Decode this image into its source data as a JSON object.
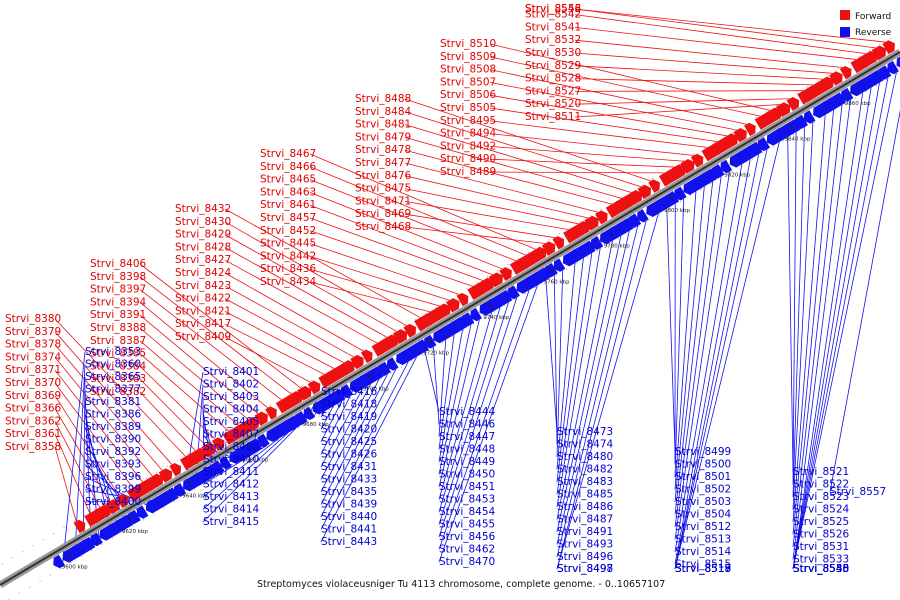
{
  "caption": "Streptomyces violaceusniger Tu 4113 chromosome, complete genome. - 0..10657107",
  "legend": {
    "forward": {
      "label": "Forward",
      "color": "#ee1111"
    },
    "reverse": {
      "label": "Reverse",
      "color": "#1111ee"
    }
  },
  "ticks": [
    "9600 kbp",
    "9620 kbp",
    "9640 kbp",
    "9660 kbp",
    "9680 kbp",
    "9700 kbp",
    "9720 kbp",
    "9740 kbp",
    "9760 kbp",
    "9780 kbp",
    "9800 kbp",
    "9820 kbp",
    "9840 kbp",
    "9860 kbp",
    "9880 kbp"
  ],
  "forward_genes": [
    "Strvi_8358",
    "Strvi_8361",
    "Strvi_8362",
    "Strvi_8366",
    "Strvi_8369",
    "Strvi_8370",
    "Strvi_8371",
    "Strvi_8374",
    "Strvi_8378",
    "Strvi_8379",
    "Strvi_8380",
    "Strvi_8382",
    "Strvi_8383",
    "Strvi_8384",
    "Strvi_8385",
    "Strvi_8387",
    "Strvi_8388",
    "Strvi_8391",
    "Strvi_8394",
    "Strvi_8397",
    "Strvi_8398",
    "Strvi_8406",
    "Strvi_8409",
    "Strvi_8417",
    "Strvi_8421",
    "Strvi_8422",
    "Strvi_8423",
    "Strvi_8424",
    "Strvi_8427",
    "Strvi_8428",
    "Strvi_8429",
    "Strvi_8430",
    "Strvi_8432",
    "Strvi_8434",
    "Strvi_8436",
    "Strvi_8442",
    "Strvi_8445",
    "Strvi_8452",
    "Strvi_8457",
    "Strvi_8461",
    "Strvi_8463",
    "Strvi_8465",
    "Strvi_8466",
    "Strvi_8467",
    "Strvi_8468",
    "Strvi_8469",
    "Strvi_8471",
    "Strvi_8475",
    "Strvi_8476",
    "Strvi_8477",
    "Strvi_8478",
    "Strvi_8479",
    "Strvi_8481",
    "Strvi_8484",
    "Strvi_8488",
    "Strvi_8489",
    "Strvi_8490",
    "Strvi_8492",
    "Strvi_8494",
    "Strvi_8495",
    "Strvi_8505",
    "Strvi_8506",
    "Strvi_8507",
    "Strvi_8508",
    "Strvi_8509",
    "Strvi_8510",
    "Strvi_8511",
    "Strvi_8520",
    "Strvi_8527",
    "Strvi_8528",
    "Strvi_8529",
    "Strvi_8530",
    "Strvi_8532",
    "Strvi_8541",
    "Strvi_8542",
    "Strvi_8543",
    "Strvi_8556"
  ],
  "reverse_genes": [
    "Strvi_8353",
    "Strvi_8360",
    "Strvi_8365",
    "Strvi_8377",
    "Strvi_8381",
    "Strvi_8386",
    "Strvi_8389",
    "Strvi_8390",
    "Strvi_8392",
    "Strvi_8393",
    "Strvi_8396",
    "Strvi_8399",
    "Strvi_8400",
    "Strvi_8401",
    "Strvi_8402",
    "Strvi_8403",
    "Strvi_8404",
    "Strvi_8405",
    "Strvi_8407",
    "Strvi_8408",
    "Strvi_8410",
    "Strvi_8411",
    "Strvi_8412",
    "Strvi_8413",
    "Strvi_8414",
    "Strvi_8415",
    "Strvi_8416",
    "Strvi_8418",
    "Strvi_8419",
    "Strvi_8420",
    "Strvi_8425",
    "Strvi_8426",
    "Strvi_8431",
    "Strvi_8433",
    "Strvi_8435",
    "Strvi_8439",
    "Strvi_8440",
    "Strvi_8441",
    "Strvi_8443",
    "Strvi_8444",
    "Strvi_8446",
    "Strvi_8447",
    "Strvi_8448",
    "Strvi_8449",
    "Strvi_8450",
    "Strvi_8451",
    "Strvi_8453",
    "Strvi_8454",
    "Strvi_8455",
    "Strvi_8456",
    "Strvi_8462",
    "Strvi_8470",
    "Strvi_8473",
    "Strvi_8474",
    "Strvi_8480",
    "Strvi_8482",
    "Strvi_8483",
    "Strvi_8485",
    "Strvi_8486",
    "Strvi_8487",
    "Strvi_8491",
    "Strvi_8493",
    "Strvi_8496",
    "Strvi_8497",
    "Strvi_8498",
    "Strvi_8499",
    "Strvi_8500",
    "Strvi_8501",
    "Strvi_8502",
    "Strvi_8503",
    "Strvi_8504",
    "Strvi_8512",
    "Strvi_8513",
    "Strvi_8514",
    "Strvi_8515",
    "Strvi_8517",
    "Strvi_8518",
    "Strvi_8519",
    "Strvi_8521",
    "Strvi_8522",
    "Strvi_8523",
    "Strvi_8524",
    "Strvi_8525",
    "Strvi_8526",
    "Strvi_8531",
    "Strvi_8533",
    "Strvi_8535",
    "Strvi_8536",
    "Strvi_8540",
    "Strvi_8548",
    "Strvi_8555",
    "Strvi_8557"
  ]
}
